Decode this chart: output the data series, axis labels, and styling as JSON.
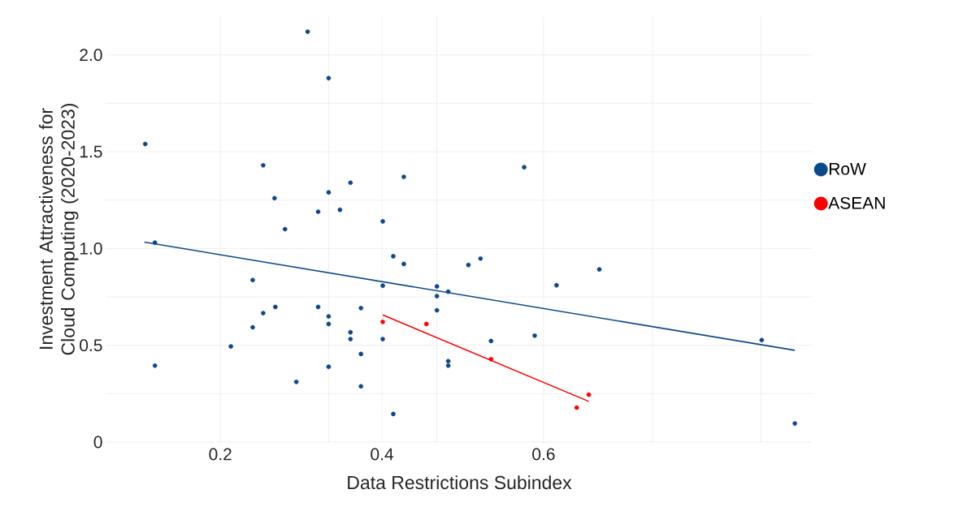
{
  "chart_data": {
    "type": "scatter",
    "xlabel": "Data Restrictions Subindex",
    "ylabel": "Investment Attractiveness for Cloud Computing (2020-2023)",
    "xlim": [
      0.058,
      0.933
    ],
    "ylim": [
      0,
      2.2
    ],
    "xticks": [
      0.2,
      {
        "value": 0.334,
        "label": null
      },
      0.4,
      {
        "value": 0.468,
        "label": null
      },
      0.6,
      {
        "value": 0.735,
        "label": null
      },
      {
        "value": 0.869,
        "label": null
      }
    ],
    "yticks": [
      0,
      {
        "value": 0.25,
        "label": null
      },
      0.5,
      {
        "value": 0.75,
        "label": null
      },
      {
        "value": 1,
        "label": "1.0"
      },
      {
        "value": 1.25,
        "label": null
      },
      1.5,
      {
        "value": 1.75,
        "label": null
      },
      {
        "value": 2,
        "label": "2.0"
      }
    ],
    "grid": true,
    "legend": "right",
    "marker": "circle",
    "series": [
      {
        "name": "RoW",
        "color": "#0a4a8c",
        "x": [
          0.107,
          0.119,
          0.253,
          0.267,
          0.28,
          0.308,
          0.334,
          0.334,
          0.321,
          0.348,
          0.361,
          0.401,
          0.427,
          0.414,
          0.119,
          0.213,
          0.24,
          0.24,
          0.253,
          0.268,
          0.294,
          0.321,
          0.334,
          0.334,
          0.334,
          0.361,
          0.361,
          0.374,
          0.374,
          0.374,
          0.401,
          0.401,
          0.427,
          0.414,
          0.468,
          0.468,
          0.468,
          0.482,
          0.482,
          0.482,
          0.507,
          0.576,
          0.522,
          0.669,
          0.616,
          0.535,
          0.589,
          0.87,
          0.911
        ],
        "values": [
          1.54,
          1.03,
          1.43,
          1.26,
          1.1,
          2.12,
          1.88,
          1.29,
          1.19,
          1.2,
          1.34,
          1.14,
          1.37,
          0.96,
          0.395,
          0.494,
          0.837,
          0.593,
          0.666,
          0.698,
          0.311,
          0.698,
          0.649,
          0.61,
          0.389,
          0.567,
          0.532,
          0.692,
          0.455,
          0.288,
          0.532,
          0.808,
          0.92,
          0.145,
          0.804,
          0.754,
          0.681,
          0.777,
          0.418,
          0.395,
          0.915,
          1.42,
          0.948,
          0.892,
          0.81,
          0.522,
          0.55,
          0.527,
          0.096
        ]
      },
      {
        "name": "ASEAN",
        "color": "#ff0000",
        "x": [
          0.401,
          0.455,
          0.535,
          0.641,
          0.656
        ],
        "values": [
          0.621,
          0.61,
          0.428,
          0.178,
          0.245
        ]
      },
      {
        "type": "line",
        "marker": "none",
        "color": "#0a4a8c",
        "x": [
          0.106,
          0.911
        ],
        "values": [
          1.033,
          0.474
        ]
      },
      {
        "type": "line",
        "marker": "none",
        "color": "#ff0000",
        "x": [
          0.401,
          0.656
        ],
        "values": [
          0.657,
          0.21
        ]
      }
    ]
  }
}
